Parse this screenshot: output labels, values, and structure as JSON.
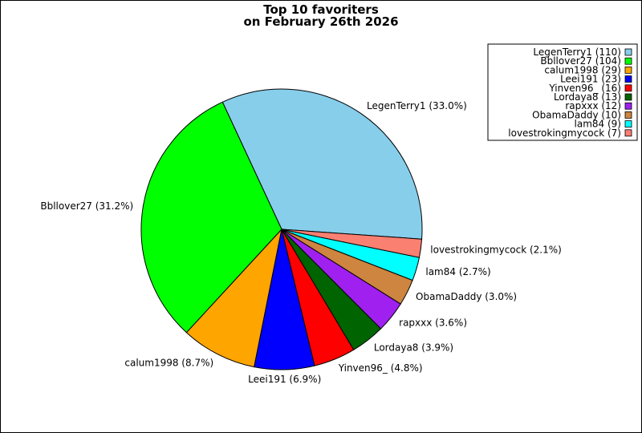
{
  "chart_data": {
    "type": "pie",
    "title": [
      "Top 10 favoriters",
      "on February 26th 2026"
    ],
    "slices": [
      {
        "name": "LegenTerry1",
        "value": 110,
        "percent_label": "LegenTerry1 (33.0%)",
        "legend_label": "LegenTerry1 (110)",
        "color": "#87CEEB"
      },
      {
        "name": "Bbllover27",
        "value": 104,
        "percent_label": "Bbllover27 (31.2%)",
        "legend_label": "Bbllover27 (104)",
        "color": "#00FF00"
      },
      {
        "name": "calum1998",
        "value": 29,
        "percent_label": "calum1998 (8.7%)",
        "legend_label": "calum1998 (29)",
        "color": "#FFA500"
      },
      {
        "name": "Leei191",
        "value": 23,
        "percent_label": "Leei191 (6.9%)",
        "legend_label": "Leei191 (23)",
        "color": "#0000FF"
      },
      {
        "name": "Yinven96_",
        "value": 16,
        "percent_label": "Yinven96_ (4.8%)",
        "legend_label": "Yinven96_ (16)",
        "color": "#FF0000"
      },
      {
        "name": "Lordaya8",
        "value": 13,
        "percent_label": "Lordaya8 (3.9%)",
        "legend_label": "Lordaya8 (13)",
        "color": "#006400"
      },
      {
        "name": "rapxxx",
        "value": 12,
        "percent_label": "rapxxx (3.6%)",
        "legend_label": "rapxxx (12)",
        "color": "#A020F0"
      },
      {
        "name": "ObamaDaddy",
        "value": 10,
        "percent_label": "ObamaDaddy (3.0%)",
        "legend_label": "ObamaDaddy (10)",
        "color": "#CD853F"
      },
      {
        "name": "lam84",
        "value": 9,
        "percent_label": "lam84 (2.7%)",
        "legend_label": "lam84 (9)",
        "color": "#00FFFF"
      },
      {
        "name": "lovestrokingmycock",
        "value": 7,
        "percent_label": "lovestrokingmycock (2.1%)",
        "legend_label": "lovestrokingmycock (7)",
        "color": "#FA8072"
      }
    ],
    "legend_position": "top-right"
  }
}
